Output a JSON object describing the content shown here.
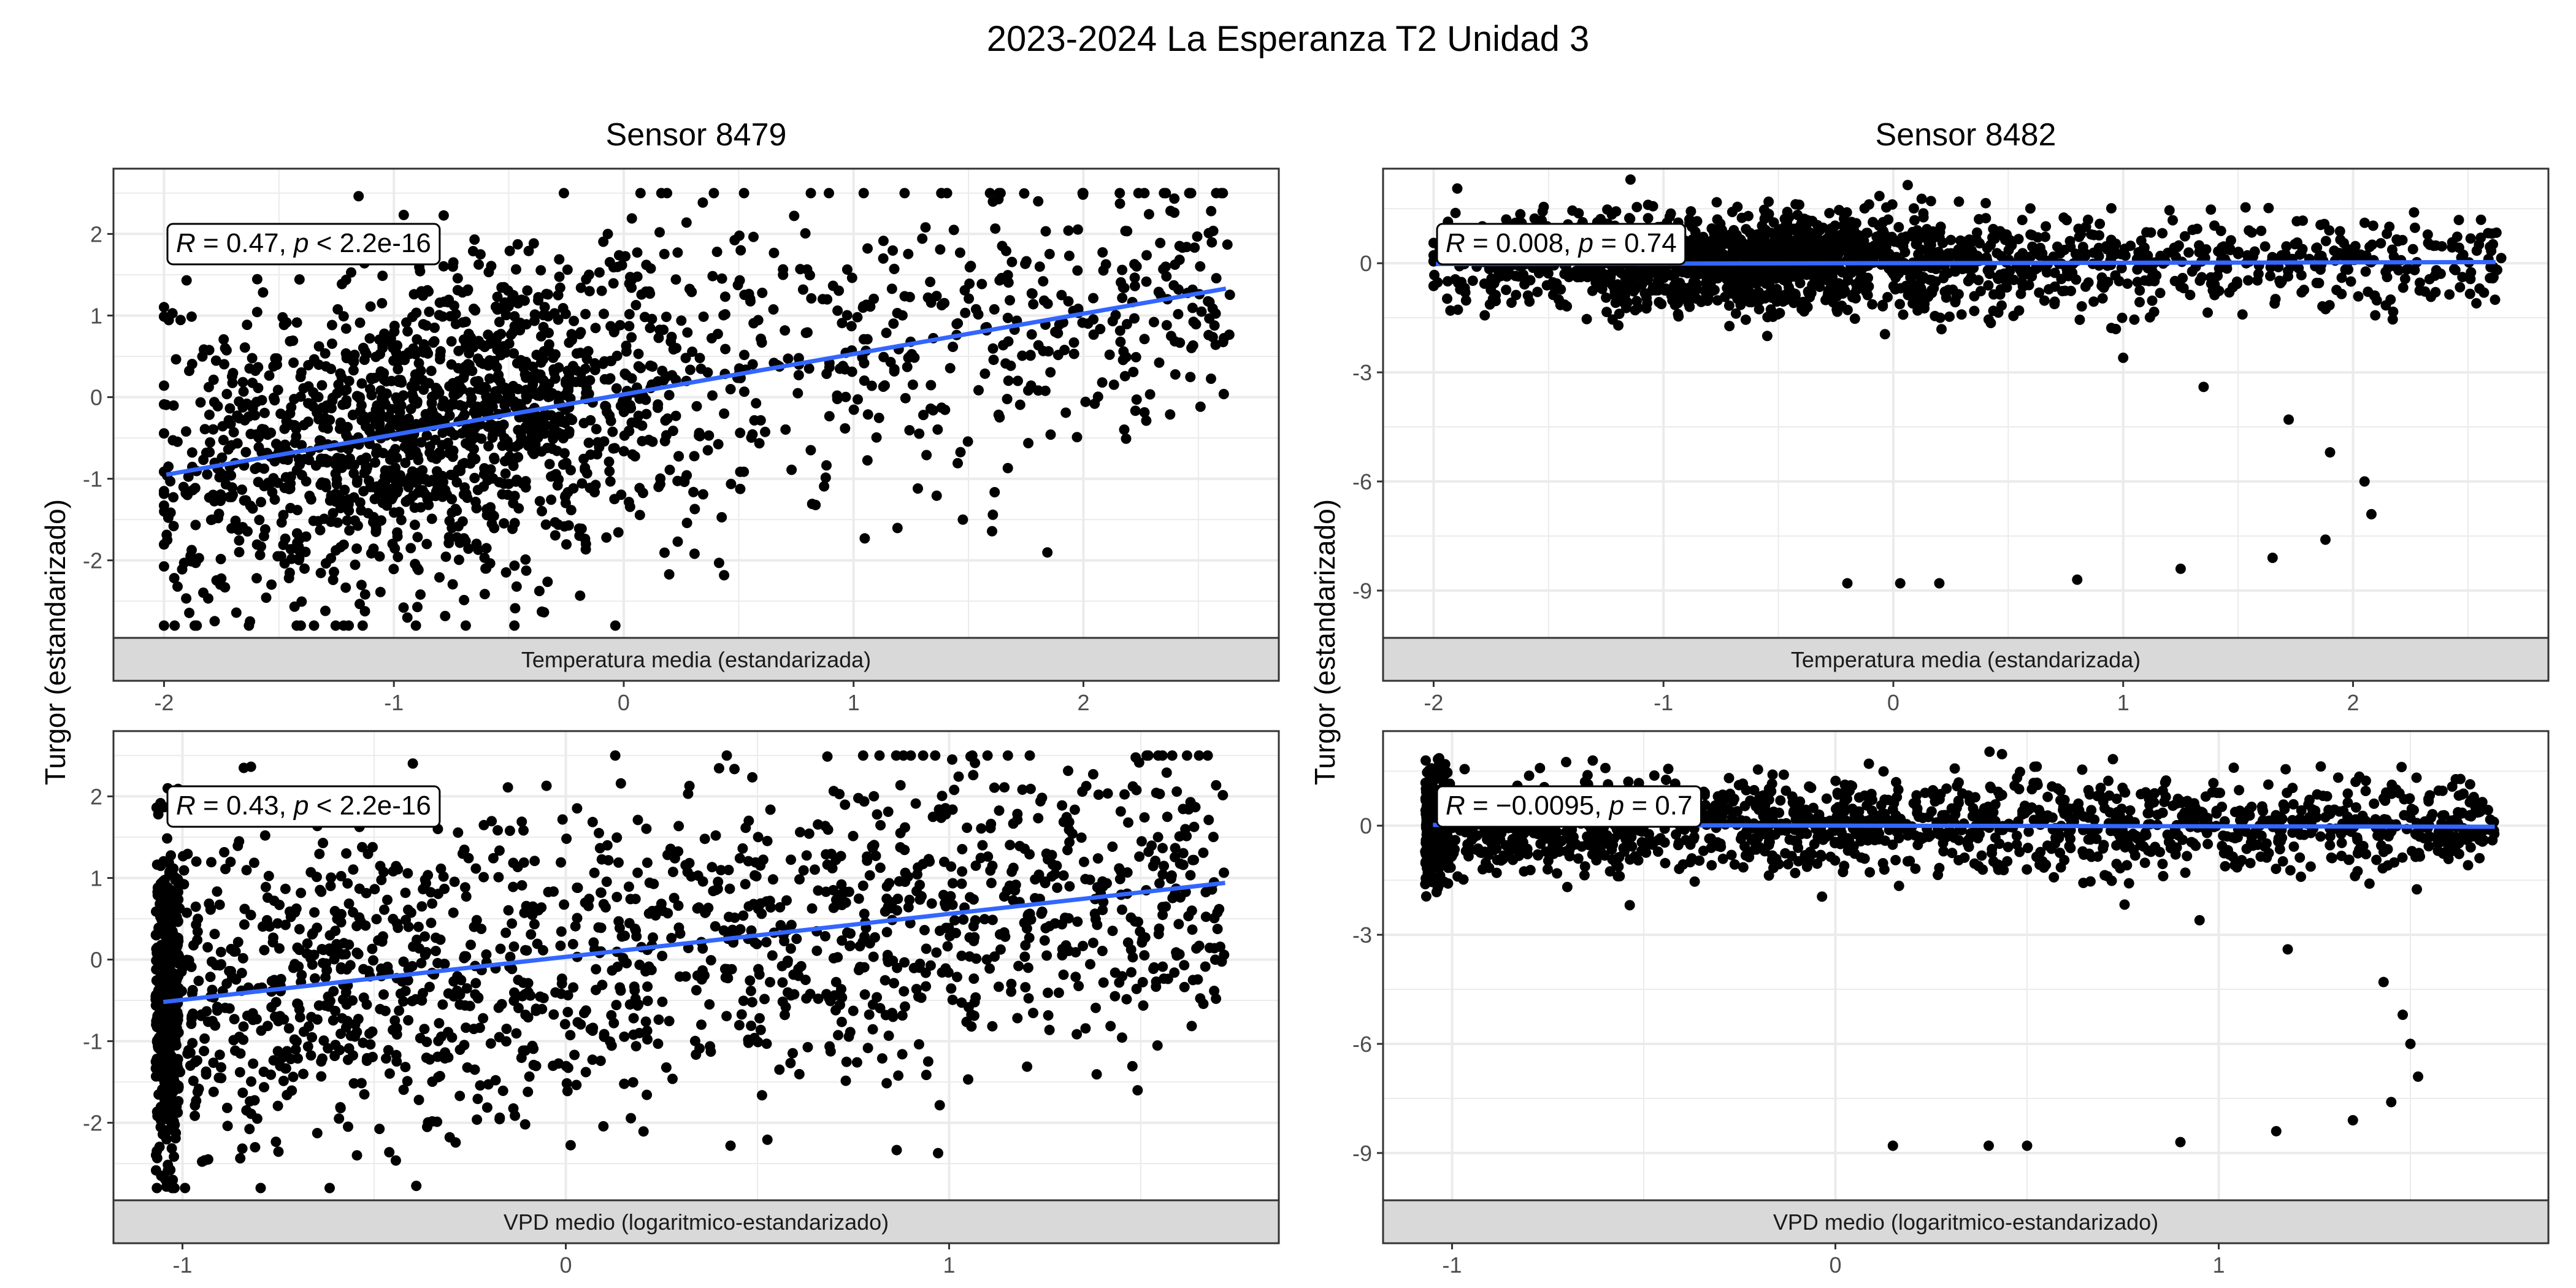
{
  "title": "2023-2024 La Esperanza T2 Unidad 3",
  "column_titles": [
    "Sensor 8479",
    "Sensor 8482"
  ],
  "ylabel": "Turgor (estandarizado)",
  "colors": {
    "points": "#000000",
    "fit_line": "#3366ff",
    "grid": "#ebebeb",
    "strip": "#d9d9d9"
  },
  "chart_data": [
    {
      "type": "scatter",
      "facet": "Sensor 8479 / Temperatura media (estandarizada)",
      "xlabel": "Temperatura media (estandarizada)",
      "xlim": [
        -2.22,
        2.85
      ],
      "ylim": [
        -2.95,
        2.8
      ],
      "xticks": [
        -2,
        -1,
        0,
        1,
        2
      ],
      "yticks": [
        -2,
        -1,
        0,
        1,
        2
      ],
      "annotation": {
        "R": "0.47",
        "p": "< 2.2e-16"
      },
      "fit": {
        "x": [
          -1.99,
          2.62
        ],
        "y": [
          -0.95,
          1.33
        ]
      },
      "n_points": 1900,
      "distribution": {
        "xmin": -2.0,
        "xmax": 2.65,
        "x_peak": -0.8,
        "y_peak": -0.8,
        "ymin": -2.8,
        "ymax": 2.5
      },
      "outliers": {
        "x": [],
        "y": []
      }
    },
    {
      "type": "scatter",
      "facet": "Sensor 8482 / Temperatura media (estandarizada)",
      "xlabel": "Temperatura media (estandarizada)",
      "xlim": [
        -2.22,
        2.85
      ],
      "ylim": [
        -10.3,
        2.6
      ],
      "xticks": [
        -2,
        -1,
        0,
        1,
        2
      ],
      "yticks": [
        -9,
        -6,
        -3,
        0
      ],
      "annotation": {
        "R": "0.008",
        "p": "0.74"
      },
      "fit": {
        "x": [
          -1.99,
          2.62
        ],
        "y": [
          -0.02,
          0.03
        ]
      },
      "n_points": 1900,
      "distribution": {
        "xmin": -2.0,
        "xmax": 2.65,
        "x_peak": -0.6,
        "y_peak": 0.0,
        "ymin": -2.2,
        "ymax": 2.3
      },
      "outliers": {
        "x": [
          -0.2,
          0.03,
          0.2,
          0.8,
          1.0,
          1.25,
          1.35,
          1.65,
          1.72,
          1.88,
          1.9,
          2.05,
          2.08
        ],
        "y": [
          -8.8,
          -8.8,
          -8.8,
          -8.7,
          -2.6,
          -8.4,
          -3.4,
          -8.1,
          -4.3,
          -7.6,
          -5.2,
          -6.0,
          -6.9
        ]
      }
    },
    {
      "type": "scatter",
      "facet": "Sensor 8479 / VPD medio (logaritmico-estandarizado)",
      "xlabel": "VPD medio (logaritmico-estandarizado)",
      "xlim": [
        -1.18,
        1.86
      ],
      "ylim": [
        -2.95,
        2.8
      ],
      "xticks": [
        -1,
        0,
        1
      ],
      "yticks": [
        -2,
        -1,
        0,
        1,
        2
      ],
      "annotation": {
        "R": "0.43",
        "p": "< 2.2e-16"
      },
      "fit": {
        "x": [
          -1.05,
          1.72
        ],
        "y": [
          -0.52,
          0.94
        ]
      },
      "n_points": 1900,
      "distribution": {
        "xmin": -1.07,
        "xmax": 1.72,
        "x_peak": -1.05,
        "y_peak": 0.0,
        "ymin": -2.8,
        "ymax": 2.5
      },
      "outliers": {
        "x": [],
        "y": []
      }
    },
    {
      "type": "scatter",
      "facet": "Sensor 8482 / VPD medio (logaritmico-estandarizado)",
      "xlabel": "VPD medio (logaritmico-estandarizado)",
      "xlim": [
        -1.18,
        1.86
      ],
      "ylim": [
        -10.3,
        2.6
      ],
      "xticks": [
        -1,
        0,
        1
      ],
      "yticks": [
        -9,
        -6,
        -3,
        0
      ],
      "annotation": {
        "R": "−0.0095",
        "p": "0.7"
      },
      "fit": {
        "x": [
          -1.05,
          1.72
        ],
        "y": [
          0.02,
          -0.03
        ]
      },
      "n_points": 1900,
      "distribution": {
        "xmin": -1.07,
        "xmax": 1.72,
        "x_peak": -1.05,
        "y_peak": 0.0,
        "ymin": -2.2,
        "ymax": 2.3
      },
      "outliers": {
        "x": [
          0.15,
          0.4,
          0.5,
          0.9,
          0.95,
          1.15,
          1.18,
          1.35,
          1.43,
          1.45,
          1.48,
          1.5,
          1.52
        ],
        "y": [
          -8.8,
          -8.8,
          -8.8,
          -8.7,
          -2.6,
          -8.4,
          -3.4,
          -8.1,
          -4.3,
          -7.6,
          -5.2,
          -6.0,
          -6.9
        ]
      }
    }
  ]
}
